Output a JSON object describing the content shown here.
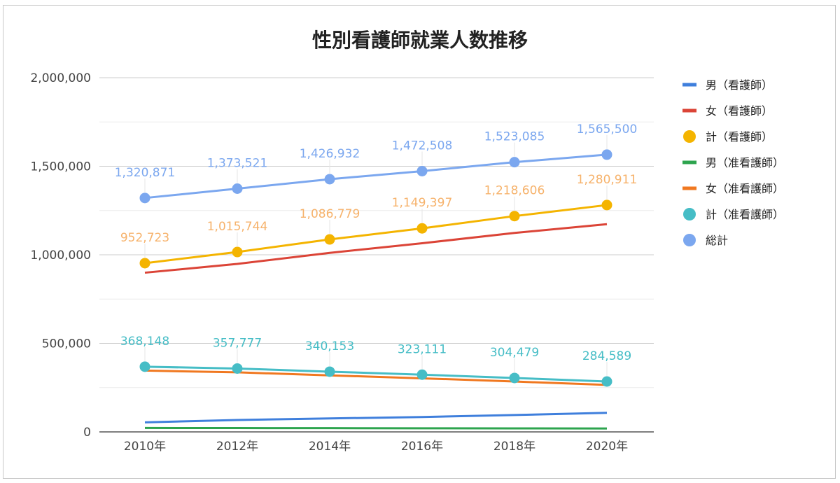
{
  "chart_data": {
    "type": "line",
    "title": "性別看護師就業人数推移",
    "xlabel": "",
    "ylabel": "",
    "categories": [
      "2010年",
      "2012年",
      "2014年",
      "2016年",
      "2018年",
      "2020年"
    ],
    "ylim": [
      0,
      2000000
    ],
    "yticks": [
      0,
      500000,
      1000000,
      1500000,
      2000000
    ],
    "ytick_labels": [
      "0",
      "500,000",
      "1,000,000",
      "1,500,000",
      "2,000,000"
    ],
    "grid": true,
    "legend_position": "right",
    "series": [
      {
        "name": "男（看護師）",
        "color": "#3f7fdc",
        "marker": false,
        "labels": false,
        "values": [
          53748,
          67264,
          75966,
          84193,
          95155,
          107800
        ]
      },
      {
        "name": "女（看護師）",
        "color": "#db4437",
        "marker": false,
        "labels": false,
        "values": [
          898975,
          948480,
          1010813,
          1065204,
          1123451,
          1173111
        ]
      },
      {
        "name": "計（看護師）",
        "color": "#f4b400",
        "marker": true,
        "labels": true,
        "label_color": "#f6b26b",
        "values": [
          952723,
          1015744,
          1086779,
          1149397,
          1218606,
          1280911
        ]
      },
      {
        "name": "男（准看護師）",
        "color": "#2da44e",
        "marker": false,
        "labels": false,
        "values": [
          22000,
          21500,
          21000,
          20500,
          20000,
          19500
        ]
      },
      {
        "name": "女（准看護師）",
        "color": "#f07820",
        "marker": false,
        "labels": false,
        "values": [
          346148,
          336277,
          319153,
          302611,
          284479,
          265089
        ]
      },
      {
        "name": "計（准看護師）",
        "color": "#46bdc6",
        "marker": true,
        "labels": true,
        "label_color": "#46bdc6",
        "values": [
          368148,
          357777,
          340153,
          323111,
          304479,
          284589
        ]
      },
      {
        "name": "総計",
        "color": "#7ba7ef",
        "marker": true,
        "labels": true,
        "label_color": "#7ba7ef",
        "values": [
          1320871,
          1373521,
          1426932,
          1472508,
          1523085,
          1565500
        ]
      }
    ],
    "data_labels": {
      "計（看護師）": [
        "952,723",
        "1,015,744",
        "1,086,779",
        "1,149,397",
        "1,218,606",
        "1,280,911"
      ],
      "計（准看護師）": [
        "368,148",
        "357,777",
        "340,153",
        "323,111",
        "304,479",
        "284,589"
      ],
      "総計": [
        "1,320,871",
        "1,373,521",
        "1,426,932",
        "1,472,508",
        "1,523,085",
        "1,565,500"
      ]
    }
  }
}
